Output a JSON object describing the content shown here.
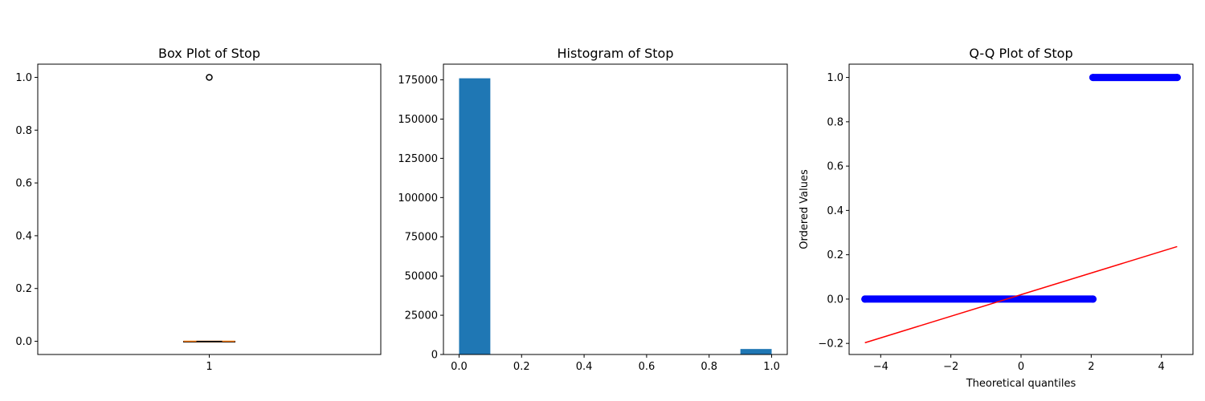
{
  "colors": {
    "hist_bar": "#1f77b4",
    "qq_points": "#0000ff",
    "qq_line": "#ff0000",
    "box_median": "#ff7f0e",
    "axis": "#000000"
  },
  "chart_data": [
    {
      "type": "box",
      "title": "Box Plot of Stop",
      "xlabel": "",
      "ylabel": "",
      "categories": [
        "1"
      ],
      "box": {
        "q1": 0.0,
        "median": 0.0,
        "q3": 0.0,
        "whisker_low": 0.0,
        "whisker_high": 0.0,
        "outliers": [
          1.0
        ]
      },
      "xlim": [
        0.5,
        1.5
      ],
      "ylim": [
        -0.05,
        1.05
      ],
      "yticks": [
        0.0,
        0.2,
        0.4,
        0.6,
        0.8,
        1.0
      ],
      "ytick_labels": [
        "0.0",
        "0.2",
        "0.4",
        "0.6",
        "0.8",
        "1.0"
      ],
      "grid": false
    },
    {
      "type": "bar",
      "title": "Histogram of Stop",
      "xlabel": "",
      "ylabel": "",
      "bins": [
        {
          "start": 0.0,
          "end": 0.1,
          "count": 176000
        },
        {
          "start": 0.1,
          "end": 0.2,
          "count": 0
        },
        {
          "start": 0.2,
          "end": 0.3,
          "count": 0
        },
        {
          "start": 0.3,
          "end": 0.4,
          "count": 0
        },
        {
          "start": 0.4,
          "end": 0.5,
          "count": 0
        },
        {
          "start": 0.5,
          "end": 0.6,
          "count": 0
        },
        {
          "start": 0.6,
          "end": 0.7,
          "count": 0
        },
        {
          "start": 0.7,
          "end": 0.8,
          "count": 0
        },
        {
          "start": 0.8,
          "end": 0.9,
          "count": 0
        },
        {
          "start": 0.9,
          "end": 1.0,
          "count": 3500
        }
      ],
      "xlim": [
        -0.05,
        1.05
      ],
      "ylim": [
        0,
        185000
      ],
      "xticks": [
        0.0,
        0.2,
        0.4,
        0.6,
        0.8,
        1.0
      ],
      "xtick_labels": [
        "0.0",
        "0.2",
        "0.4",
        "0.6",
        "0.8",
        "1.0"
      ],
      "yticks": [
        0,
        25000,
        50000,
        75000,
        100000,
        125000,
        150000,
        175000
      ],
      "ytick_labels": [
        "0",
        "25000",
        "50000",
        "75000",
        "100000",
        "125000",
        "150000",
        "175000"
      ],
      "grid": false
    },
    {
      "type": "scatter",
      "title": "Q-Q Plot of Stop",
      "xlabel": "Theoretical quantiles",
      "ylabel": "Ordered Values",
      "series": [
        {
          "segments": [
            {
              "x_range": [
                -4.45,
                2.05
              ],
              "y": 0.0
            },
            {
              "x_range": [
                2.05,
                4.45
              ],
              "y": 1.0
            }
          ]
        }
      ],
      "fit_line": {
        "x": [
          -4.45,
          4.45
        ],
        "y": [
          -0.197,
          0.237
        ]
      },
      "xlim": [
        -4.9,
        4.9
      ],
      "ylim": [
        -0.25,
        1.06
      ],
      "xticks": [
        -4,
        -2,
        0,
        2,
        4
      ],
      "xtick_labels": [
        "−4",
        "−2",
        "0",
        "2",
        "4"
      ],
      "yticks": [
        -0.2,
        0.0,
        0.2,
        0.4,
        0.6,
        0.8,
        1.0
      ],
      "ytick_labels": [
        "−0.2",
        "0.0",
        "0.2",
        "0.4",
        "0.6",
        "0.8",
        "1.0"
      ],
      "grid": false
    }
  ]
}
